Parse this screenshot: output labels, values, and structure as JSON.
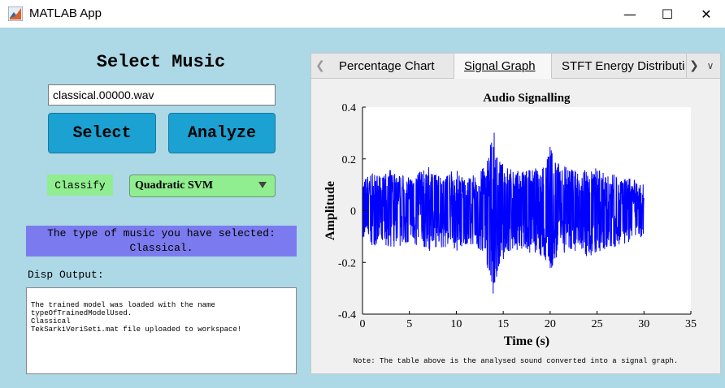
{
  "window": {
    "title": "MATLAB App",
    "icon": "matlab-logo-icon",
    "controls": {
      "minimize": "—",
      "maximize": "☐",
      "close": "✕"
    }
  },
  "left_panel": {
    "heading": "Select Music",
    "file_input": {
      "value": "classical.00000.wav"
    },
    "select_button": "Select",
    "analyze_button": "Analyze",
    "classify_label": "Classify",
    "classifier_dropdown": {
      "selected": "Quadratic SVM"
    },
    "result": {
      "line1": "The type of music you have selected:",
      "line2": "Classical."
    },
    "disp_label": "Disp Output:",
    "output_lines": [
      "The trained model was loaded with the name",
      "typeOfTrainedModelUsed.",
      "Classical",
      "TekSarkiVeriSeti.mat file uploaded to workspace!"
    ]
  },
  "tabs": {
    "items": [
      "Percentage Chart",
      "Signal Graph",
      "STFT Energy Distributi"
    ],
    "selected": "Signal Graph"
  },
  "note": "Note: The table above is the analysed sound converted into a signal graph.",
  "colors": {
    "background": "#add8e6",
    "button": "#1ba1d2",
    "classify": "#90ee90",
    "result": "#7b7bef",
    "signal": "#0000ff"
  },
  "chart_data": {
    "type": "line",
    "title": "Audio Signalling",
    "xlabel": "Time (s)",
    "ylabel": "Amplitude",
    "xlim": [
      0,
      35
    ],
    "ylim": [
      -0.4,
      0.4
    ],
    "xticks": [
      0,
      5,
      10,
      15,
      20,
      25,
      30,
      35
    ],
    "yticks": [
      -0.4,
      -0.2,
      0,
      0.2,
      0.4
    ],
    "grid": false,
    "series": [
      {
        "x": [
          0,
          1,
          2,
          3,
          4,
          5,
          6,
          7,
          8,
          9,
          10,
          11,
          12,
          13,
          13.5,
          14,
          14.5,
          15,
          16,
          17,
          18,
          19,
          19.5,
          20,
          20.5,
          21,
          22,
          23,
          24,
          25,
          26,
          27,
          28,
          29,
          30
        ],
        "upper": [
          0.12,
          0.15,
          0.13,
          0.16,
          0.14,
          0.13,
          0.15,
          0.17,
          0.14,
          0.15,
          0.16,
          0.13,
          0.14,
          0.17,
          0.24,
          0.31,
          0.2,
          0.18,
          0.16,
          0.15,
          0.17,
          0.16,
          0.18,
          0.26,
          0.2,
          0.18,
          0.17,
          0.15,
          0.19,
          0.16,
          0.15,
          0.14,
          0.13,
          0.12,
          0.1
        ],
        "lower": [
          -0.12,
          -0.14,
          -0.13,
          -0.15,
          -0.14,
          -0.13,
          -0.15,
          -0.16,
          -0.14,
          -0.15,
          -0.16,
          -0.13,
          -0.14,
          -0.18,
          -0.25,
          -0.34,
          -0.22,
          -0.19,
          -0.16,
          -0.15,
          -0.17,
          -0.18,
          -0.21,
          -0.25,
          -0.2,
          -0.18,
          -0.17,
          -0.15,
          -0.18,
          -0.16,
          -0.15,
          -0.14,
          -0.13,
          -0.12,
          -0.1
        ]
      }
    ]
  }
}
